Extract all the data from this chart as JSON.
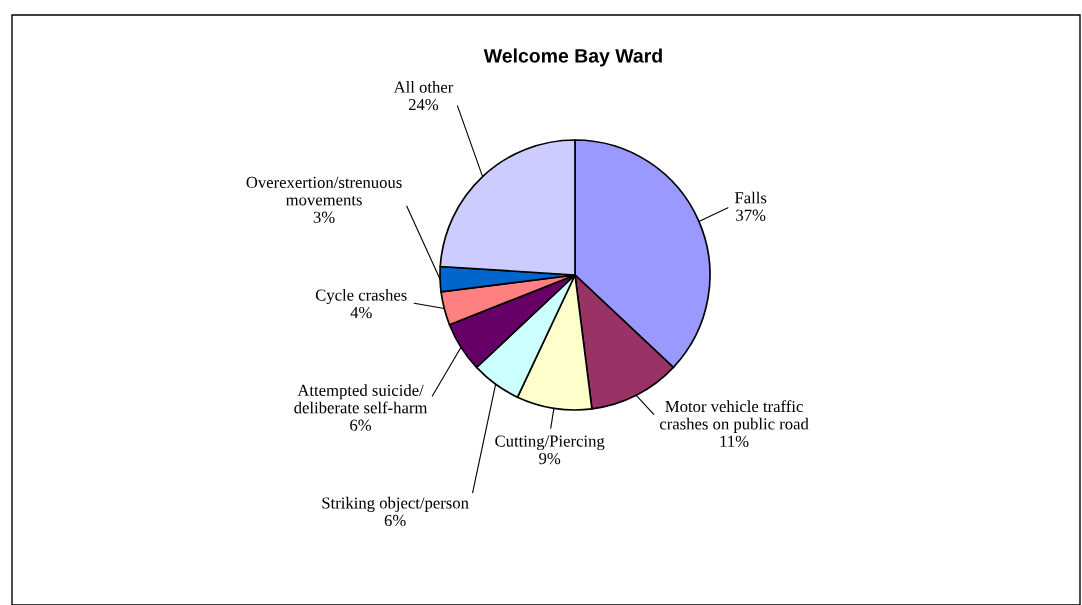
{
  "chart_data": {
    "type": "pie",
    "title": "Welcome Bay Ward",
    "categories": [
      "Falls",
      "Motor vehicle traffic crashes on public road",
      "Cutting/Piercing",
      "Striking object/person",
      "Attempted suicide/ deliberate self-harm",
      "Cycle crashes",
      "Overexertion/strenuous movements",
      "All other"
    ],
    "values": [
      37,
      11,
      9,
      6,
      6,
      4,
      3,
      24
    ],
    "value_labels": [
      "37%",
      "11%",
      "9%",
      "6%",
      "6%",
      "4%",
      "3%",
      "24%"
    ],
    "colors": [
      "#9999ff",
      "#993366",
      "#ffffcc",
      "#ccffff",
      "#660066",
      "#ff8080",
      "#0066cc",
      "#ccccff"
    ],
    "legend": false
  }
}
